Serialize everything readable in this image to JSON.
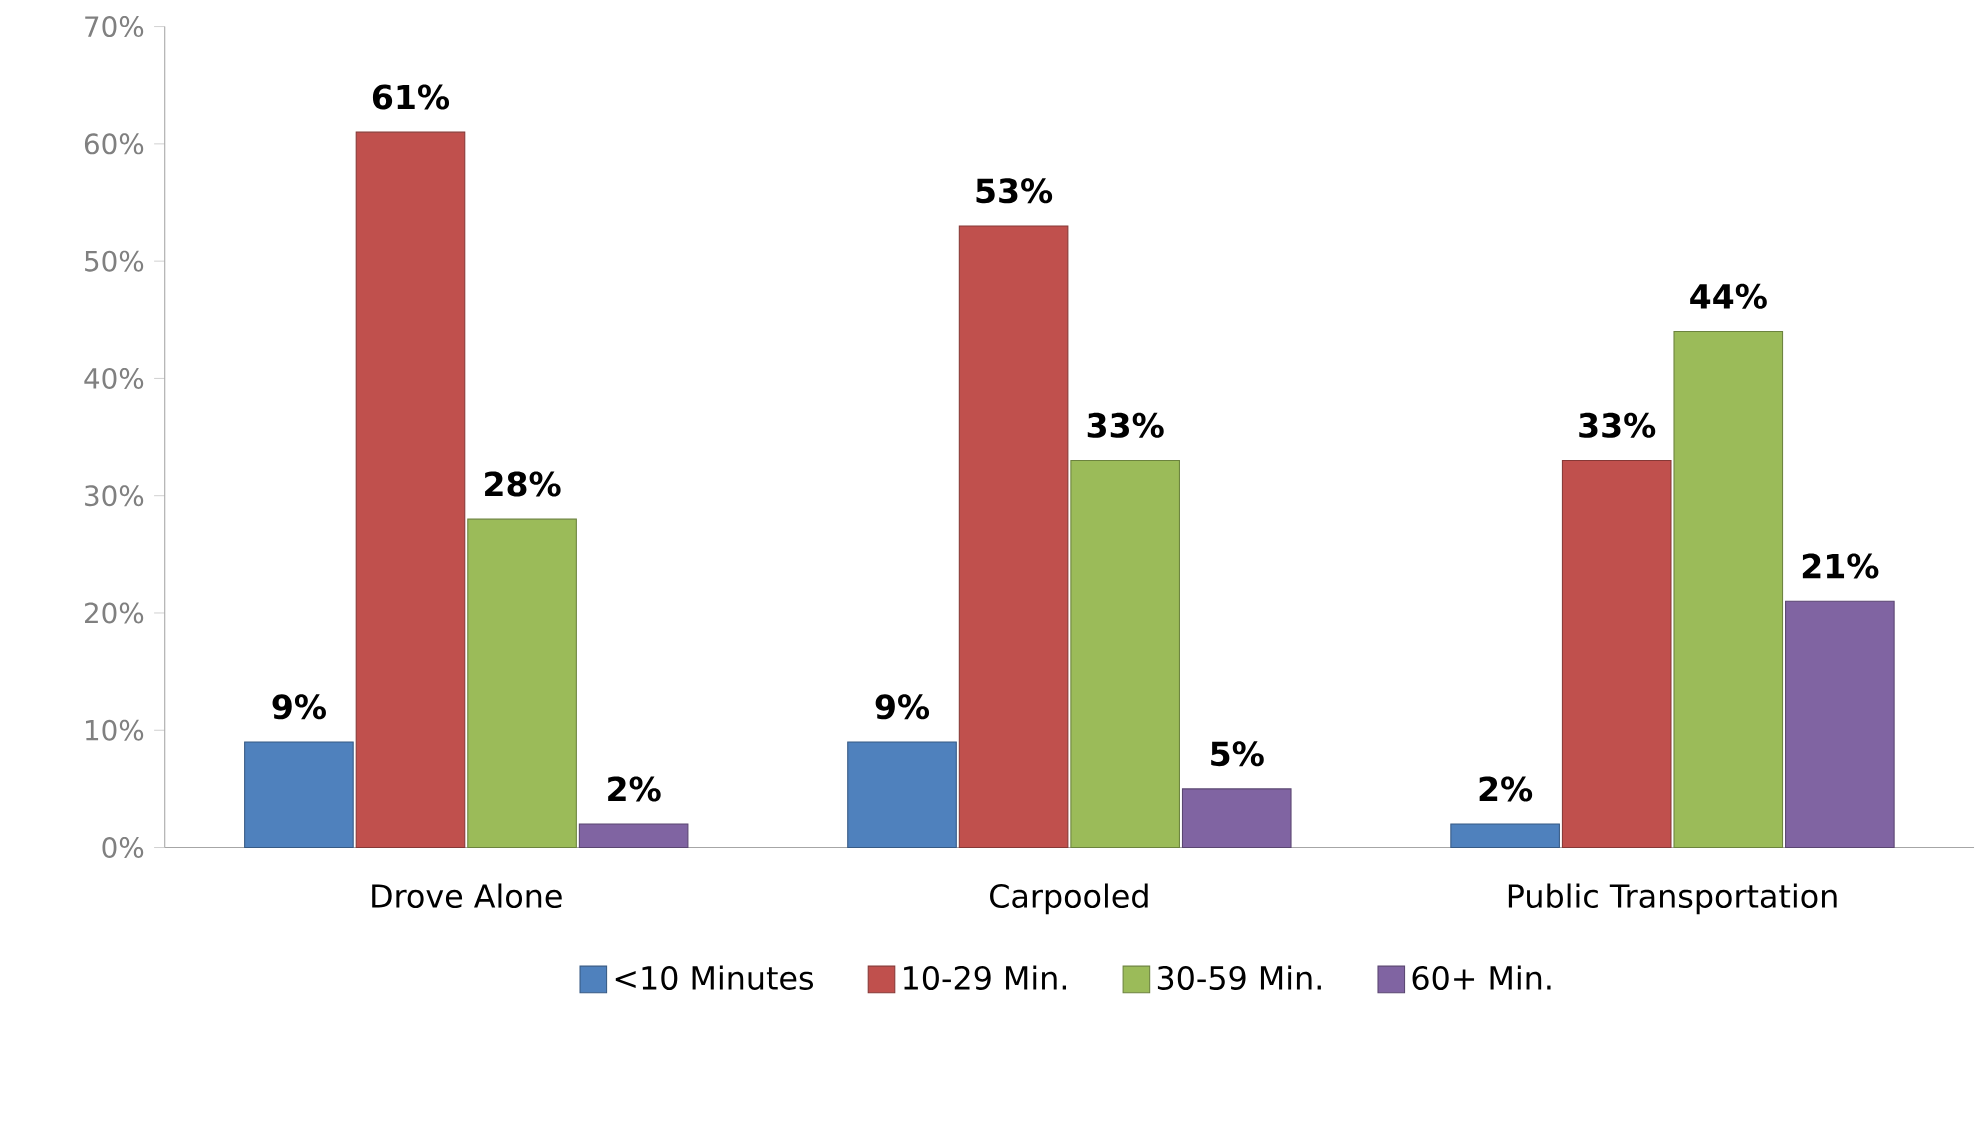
{
  "chart_data": {
    "type": "bar",
    "categories": [
      "Drove Alone",
      "Carpooled",
      "Public Transportation"
    ],
    "series": [
      {
        "name": "<10 Minutes",
        "color": "#4f81bd",
        "values": [
          9,
          9,
          2
        ],
        "value_labels": [
          "9%",
          "9%",
          "2%"
        ]
      },
      {
        "name": "10-29 Min.",
        "color": "#c0504d",
        "values": [
          61,
          53,
          33
        ],
        "value_labels": [
          "61%",
          "53%",
          "33%"
        ]
      },
      {
        "name": "30-59 Min.",
        "color": "#9bbb59",
        "values": [
          28,
          33,
          44
        ],
        "value_labels": [
          "28%",
          "33%",
          "44%"
        ]
      },
      {
        "name": "60+ Min.",
        "color": "#8064a2",
        "values": [
          2,
          5,
          21
        ],
        "value_labels": [
          "2%",
          "5%",
          "21%"
        ]
      }
    ],
    "ylim": [
      0,
      70
    ],
    "yticks": [
      {
        "value": 0,
        "label": "0%"
      },
      {
        "value": 10,
        "label": "10%"
      },
      {
        "value": 20,
        "label": "20%"
      },
      {
        "value": 30,
        "label": "30%"
      },
      {
        "value": 40,
        "label": "40%"
      },
      {
        "value": 50,
        "label": "50%"
      },
      {
        "value": 60,
        "label": "60%"
      },
      {
        "value": 70,
        "label": "70%"
      }
    ],
    "legend": "bottom",
    "grid": false
  }
}
